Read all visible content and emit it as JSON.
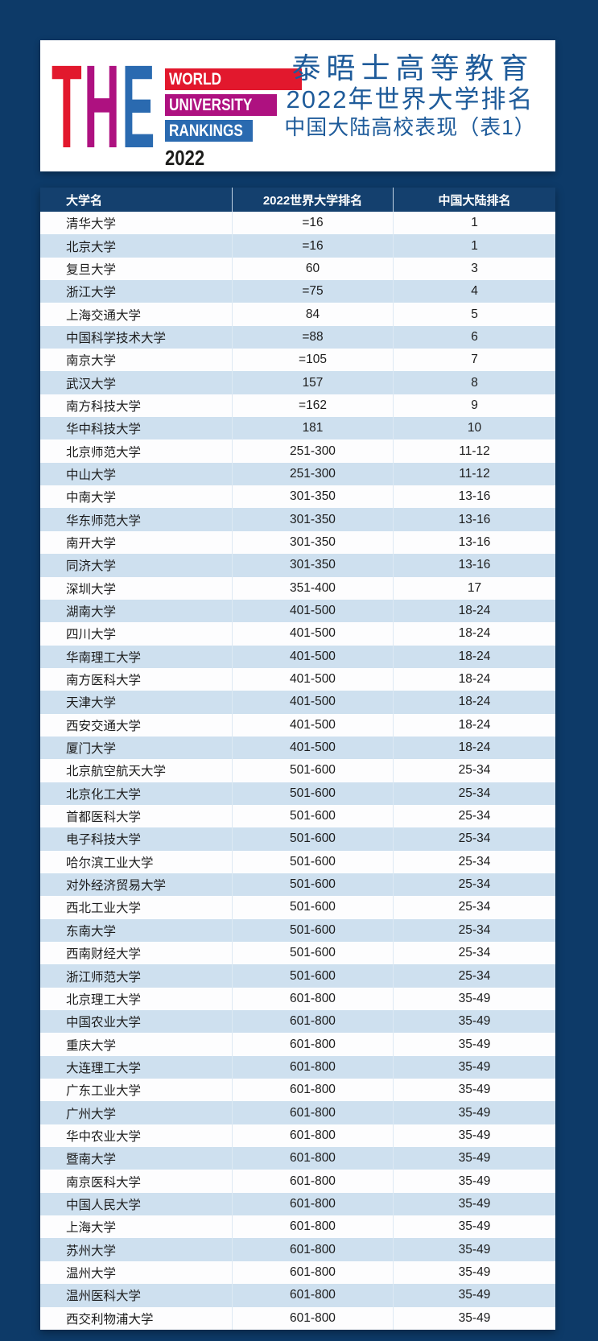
{
  "colors": {
    "background": "#0d3a68",
    "table_header_bg": "#14406e",
    "row_bg": "#fdfdfe",
    "row_alt_bg": "#cee0ef",
    "title_text": "#1e5b9a",
    "logo_red": "#e2182d",
    "logo_magenta": "#ae1180",
    "logo_blue": "#2a6ab0"
  },
  "logo": {
    "letters": [
      "T",
      "H",
      "E"
    ],
    "letter_colors": [
      "#e2182d",
      "#ae1180",
      "#2a6ab0"
    ],
    "bars": [
      {
        "label": "WORLD",
        "color": "#e2182d"
      },
      {
        "label": "UNIVERSITY",
        "color": "#ae1180"
      },
      {
        "label": "RANKINGS",
        "color": "#2a6ab0"
      }
    ],
    "year": "2022"
  },
  "title": {
    "line1": "泰晤士高等教育",
    "line2": "2022年世界大学排名",
    "line3": "中国大陆高校表现（表1）",
    "color": "#1e5b9a"
  },
  "chart_data": {
    "type": "table",
    "title": "泰晤士高等教育2022年世界大学排名 中国大陆高校表现（表1）",
    "columns": [
      "大学名",
      "2022世界大学排名",
      "中国大陆排名"
    ],
    "rows": [
      [
        "清华大学",
        "=16",
        "1"
      ],
      [
        "北京大学",
        "=16",
        "1"
      ],
      [
        "复旦大学",
        "60",
        "3"
      ],
      [
        "浙江大学",
        "=75",
        "4"
      ],
      [
        "上海交通大学",
        "84",
        "5"
      ],
      [
        "中国科学技术大学",
        "=88",
        "6"
      ],
      [
        "南京大学",
        "=105",
        "7"
      ],
      [
        "武汉大学",
        "157",
        "8"
      ],
      [
        "南方科技大学",
        "=162",
        "9"
      ],
      [
        "华中科技大学",
        "181",
        "10"
      ],
      [
        "北京师范大学",
        "251-300",
        "11-12"
      ],
      [
        "中山大学",
        "251-300",
        "11-12"
      ],
      [
        "中南大学",
        "301-350",
        "13-16"
      ],
      [
        "华东师范大学",
        "301-350",
        "13-16"
      ],
      [
        "南开大学",
        "301-350",
        "13-16"
      ],
      [
        "同济大学",
        "301-350",
        "13-16"
      ],
      [
        "深圳大学",
        "351-400",
        "17"
      ],
      [
        "湖南大学",
        "401-500",
        "18-24"
      ],
      [
        "四川大学",
        "401-500",
        "18-24"
      ],
      [
        "华南理工大学",
        "401-500",
        "18-24"
      ],
      [
        "南方医科大学",
        "401-500",
        "18-24"
      ],
      [
        "天津大学",
        "401-500",
        "18-24"
      ],
      [
        "西安交通大学",
        "401-500",
        "18-24"
      ],
      [
        "厦门大学",
        "401-500",
        "18-24"
      ],
      [
        "北京航空航天大学",
        "501-600",
        "25-34"
      ],
      [
        "北京化工大学",
        "501-600",
        "25-34"
      ],
      [
        "首都医科大学",
        "501-600",
        "25-34"
      ],
      [
        "电子科技大学",
        "501-600",
        "25-34"
      ],
      [
        "哈尔滨工业大学",
        "501-600",
        "25-34"
      ],
      [
        "对外经济贸易大学",
        "501-600",
        "25-34"
      ],
      [
        "西北工业大学",
        "501-600",
        "25-34"
      ],
      [
        "东南大学",
        "501-600",
        "25-34"
      ],
      [
        "西南财经大学",
        "501-600",
        "25-34"
      ],
      [
        "浙江师范大学",
        "501-600",
        "25-34"
      ],
      [
        "北京理工大学",
        "601-800",
        "35-49"
      ],
      [
        "中国农业大学",
        "601-800",
        "35-49"
      ],
      [
        "重庆大学",
        "601-800",
        "35-49"
      ],
      [
        "大连理工大学",
        "601-800",
        "35-49"
      ],
      [
        "广东工业大学",
        "601-800",
        "35-49"
      ],
      [
        "广州大学",
        "601-800",
        "35-49"
      ],
      [
        "华中农业大学",
        "601-800",
        "35-49"
      ],
      [
        "暨南大学",
        "601-800",
        "35-49"
      ],
      [
        "南京医科大学",
        "601-800",
        "35-49"
      ],
      [
        "中国人民大学",
        "601-800",
        "35-49"
      ],
      [
        "上海大学",
        "601-800",
        "35-49"
      ],
      [
        "苏州大学",
        "601-800",
        "35-49"
      ],
      [
        "温州大学",
        "601-800",
        "35-49"
      ],
      [
        "温州医科大学",
        "601-800",
        "35-49"
      ],
      [
        "西交利物浦大学",
        "601-800",
        "35-49"
      ]
    ],
    "layout": {
      "header_bg": "#14406e",
      "zebra": [
        "#fdfdfe",
        "#cee0ef"
      ],
      "grid": "vertical separators only"
    }
  }
}
